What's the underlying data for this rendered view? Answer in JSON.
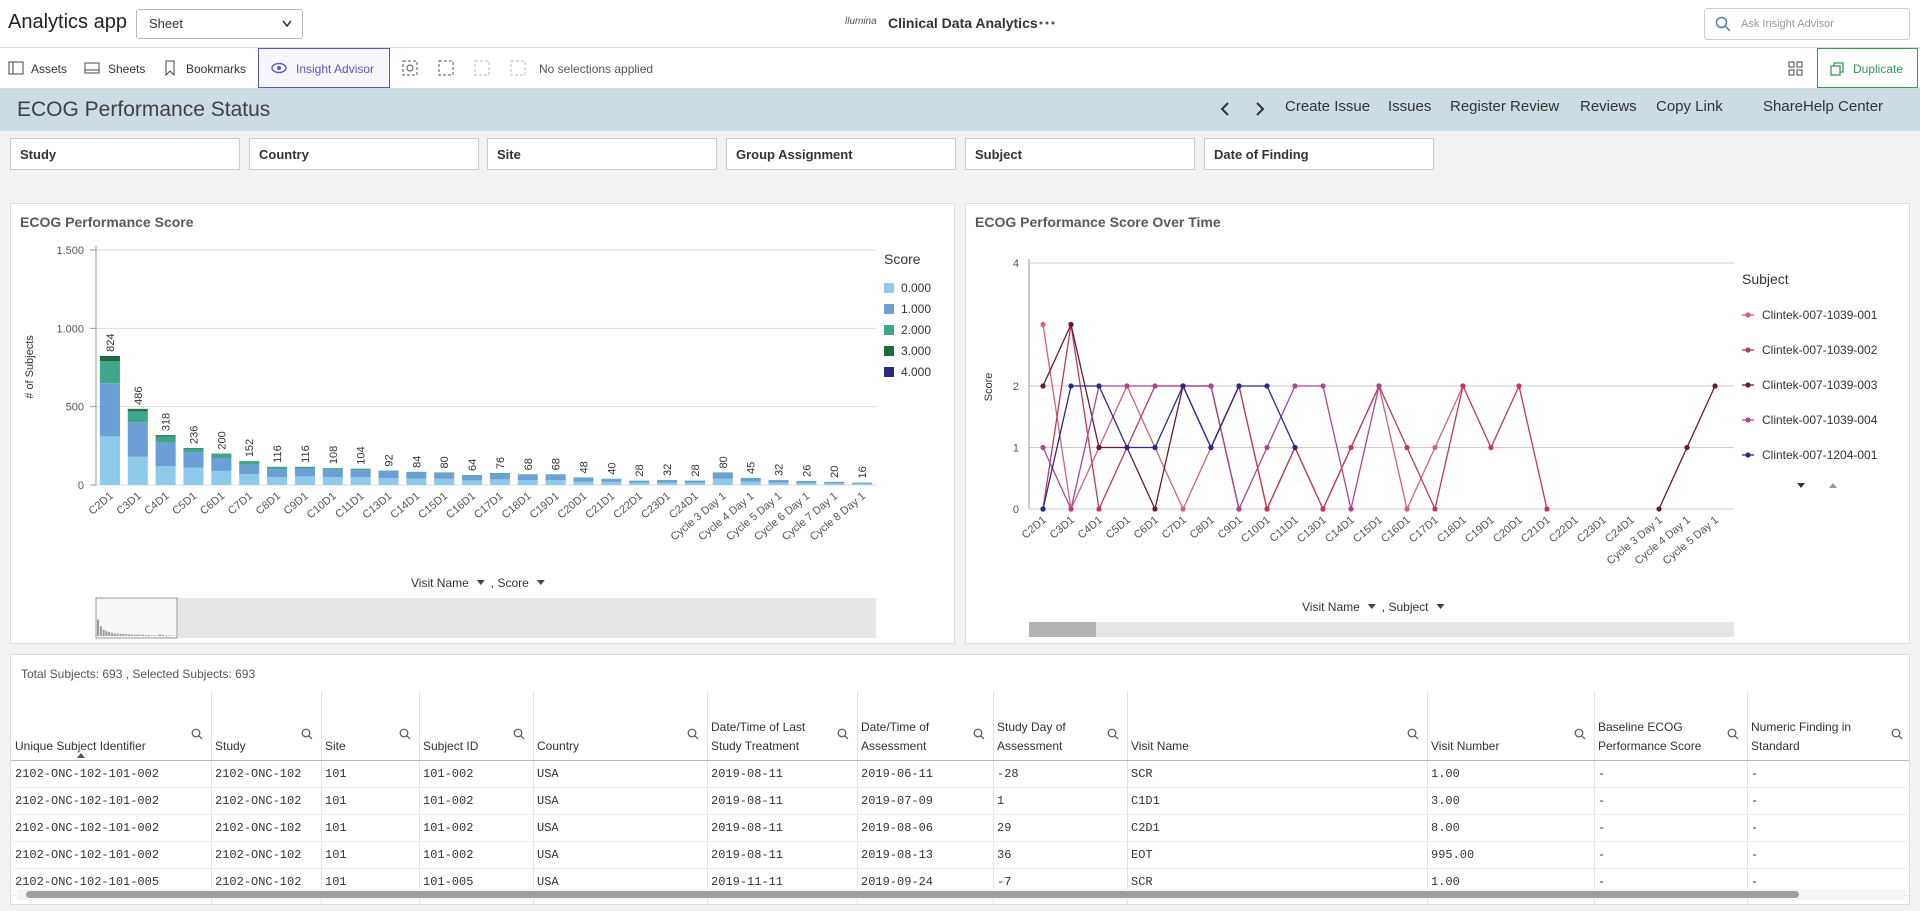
{
  "app": {
    "title": "Analytics app",
    "sheet": "Sheet",
    "logo": "llumina",
    "app_name": "Clinical Data Analytics",
    "search_placeholder": "Ask Insight Advisor"
  },
  "toolbar": {
    "assets": "Assets",
    "sheets": "Sheets",
    "bookmarks": "Bookmarks",
    "insight_advisor": "Insight Advisor",
    "selections": "No selections applied",
    "duplicate": "Duplicate"
  },
  "header": {
    "title": "ECOG Performance Status",
    "links": [
      "Create Issue",
      "Issues",
      "Register Review",
      "Reviews",
      "Copy Link",
      "Share",
      "Help Center"
    ]
  },
  "filters": [
    "Study",
    "Country",
    "Site",
    "Group Assignment",
    "Subject",
    "Date of Finding"
  ],
  "chart_data": [
    {
      "type": "bar",
      "stacked": true,
      "title": "ECOG Performance Score",
      "y_label": "# of Subjects",
      "x_label": "Visit Name",
      "x_label2": ", Score",
      "legend_title": "Score",
      "grid": true,
      "categories": [
        "C2D1",
        "C3D1",
        "C4D1",
        "C5D1",
        "C6D1",
        "C7D1",
        "C8D1",
        "C9D1",
        "C10D1",
        "C11D1",
        "C13D1",
        "C14D1",
        "C15D1",
        "C16D1",
        "C17D1",
        "C18D1",
        "C19D1",
        "C20D1",
        "C21D1",
        "C22D1",
        "C23D1",
        "C24D1",
        "Cycle 3 Day 1",
        "Cycle 4 Day 1",
        "Cycle 5 Day 1",
        "Cycle 6 Day 1",
        "Cycle 7 Day 1",
        "Cycle 8 Day 1"
      ],
      "series": [
        {
          "name": "0.000",
          "color": "#8ecbea",
          "values": [
            310,
            180,
            120,
            110,
            90,
            70,
            50,
            55,
            50,
            50,
            45,
            40,
            40,
            30,
            36,
            32,
            32,
            22,
            20,
            14,
            16,
            14,
            40,
            22,
            16,
            13,
            10,
            8
          ]
        },
        {
          "name": "1.000",
          "color": "#6b9fd6",
          "values": [
            340,
            220,
            150,
            100,
            80,
            60,
            50,
            50,
            48,
            45,
            40,
            38,
            34,
            29,
            34,
            31,
            31,
            22,
            17,
            12,
            14,
            12,
            34,
            20,
            14,
            11,
            9,
            7
          ]
        },
        {
          "name": "2.000",
          "color": "#3fa68e",
          "values": [
            140,
            70,
            40,
            22,
            26,
            20,
            14,
            10,
            9,
            8,
            7,
            6,
            6,
            5,
            6,
            5,
            5,
            4,
            3,
            2,
            2,
            2,
            6,
            3,
            2,
            2,
            1,
            1
          ]
        },
        {
          "name": "3.000",
          "color": "#1b6e3a",
          "values": [
            30,
            14,
            8,
            4,
            4,
            2,
            2,
            1,
            1,
            1,
            0,
            0,
            0,
            0,
            0,
            0,
            0,
            0,
            0,
            0,
            0,
            0,
            0,
            0,
            0,
            0,
            0,
            0
          ]
        },
        {
          "name": "4.000",
          "color": "#2c2a7c",
          "values": [
            4,
            2,
            0,
            0,
            0,
            0,
            0,
            0,
            0,
            0,
            0,
            0,
            0,
            0,
            0,
            0,
            0,
            0,
            0,
            0,
            0,
            0,
            0,
            0,
            0,
            0,
            0,
            0
          ]
        }
      ],
      "totals": [
        824,
        486,
        318,
        236,
        200,
        152,
        116,
        116,
        108,
        104,
        92,
        84,
        80,
        64,
        76,
        68,
        68,
        48,
        40,
        28,
        32,
        28,
        80,
        45,
        32,
        26,
        20,
        16
      ],
      "ylim": [
        0,
        1500
      ],
      "yticks": [
        0,
        500,
        {
          "value": 1000,
          "label": "1.000"
        },
        {
          "value": 1500,
          "label": "1.500"
        }
      ]
    },
    {
      "type": "line",
      "title": "ECOG Performance Score Over Time",
      "y_label": "Score",
      "x_label": "Visit Name",
      "x_label2": ", Subject",
      "legend_title": "Subject",
      "grid": true,
      "categories": [
        "C2D1",
        "C3D1",
        "C4D1",
        "C5D1",
        "C6D1",
        "C7D1",
        "C8D1",
        "C9D1",
        "C10D1",
        "C11D1",
        "C13D1",
        "C14D1",
        "C15D1",
        "C16D1",
        "C17D1",
        "C18D1",
        "C19D1",
        "C20D1",
        "C21D1",
        "C22D1",
        "C23D1",
        "C24D1",
        "Cycle 3 Day 1",
        "Cycle 4 Day 1",
        "Cycle 5 Day 1"
      ],
      "series": [
        {
          "name": "Clintek-007-1039-001",
          "color": "#d4607a",
          "values": [
            3,
            0,
            1,
            2,
            1,
            0,
            1,
            2,
            0,
            1,
            0,
            1,
            2,
            0,
            1,
            2,
            null,
            null,
            null,
            null,
            null,
            null,
            null,
            null,
            null
          ]
        },
        {
          "name": "Clintek-007-1039-002",
          "color": "#c0395a",
          "values": [
            0,
            3,
            0,
            1,
            2,
            2,
            1,
            2,
            0,
            1,
            0,
            1,
            2,
            1,
            0,
            2,
            1,
            2,
            0,
            null,
            null,
            null,
            null,
            null,
            null
          ]
        },
        {
          "name": "Clintek-007-1039-003",
          "color": "#6b1a2e",
          "values": [
            2,
            3,
            1,
            1,
            0,
            2,
            2,
            0,
            null,
            null,
            null,
            null,
            null,
            null,
            null,
            null,
            null,
            null,
            null,
            null,
            null,
            null,
            0,
            1,
            2
          ]
        },
        {
          "name": "Clintek-007-1039-004",
          "color": "#b0458f",
          "values": [
            1,
            0,
            2,
            2,
            2,
            2,
            2,
            0,
            1,
            2,
            2,
            0,
            2,
            null,
            null,
            null,
            null,
            null,
            null,
            null,
            null,
            null,
            null,
            null,
            null
          ]
        },
        {
          "name": "Clintek-007-1204-001",
          "color": "#2b2a8a",
          "values": [
            0,
            2,
            2,
            1,
            1,
            2,
            1,
            2,
            2,
            1,
            null,
            null,
            null,
            null,
            null,
            null,
            null,
            null,
            null,
            null,
            null,
            null,
            null,
            null,
            null
          ]
        }
      ],
      "ylim": [
        0,
        4
      ],
      "yticks": [
        0,
        1,
        2,
        4
      ]
    }
  ],
  "table": {
    "summary": "Total Subjects: 693 , Selected Subjects: 693",
    "columns": [
      "Unique Subject Identifier",
      "Study",
      "Site",
      "Subject ID",
      "Country",
      "Date/Time of Last Study Treatment",
      "Date/Time of Assessment",
      "Study Day of Assessment",
      "Visit Name",
      "Visit Number",
      "Baseline ECOG Performance Score",
      "Numeric Finding in Standard"
    ],
    "rows": [
      [
        "2102-ONC-102-101-002",
        "2102-ONC-102",
        "101",
        "101-002",
        "USA",
        "2019-08-11",
        "2019-06-11",
        "-28",
        "SCR",
        "1.00",
        "-",
        "-"
      ],
      [
        "2102-ONC-102-101-002",
        "2102-ONC-102",
        "101",
        "101-002",
        "USA",
        "2019-08-11",
        "2019-07-09",
        "1",
        "C1D1",
        "3.00",
        "-",
        "-"
      ],
      [
        "2102-ONC-102-101-002",
        "2102-ONC-102",
        "101",
        "101-002",
        "USA",
        "2019-08-11",
        "2019-08-06",
        "29",
        "C2D1",
        "8.00",
        "-",
        "-"
      ],
      [
        "2102-ONC-102-101-002",
        "2102-ONC-102",
        "101",
        "101-002",
        "USA",
        "2019-08-11",
        "2019-08-13",
        "36",
        "EOT",
        "995.00",
        "-",
        "-"
      ],
      [
        "2102-ONC-102-101-005",
        "2102-ONC-102",
        "101",
        "101-005",
        "USA",
        "2019-11-11",
        "2019-09-24",
        "-7",
        "SCR",
        "1.00",
        "-",
        "-"
      ]
    ]
  }
}
